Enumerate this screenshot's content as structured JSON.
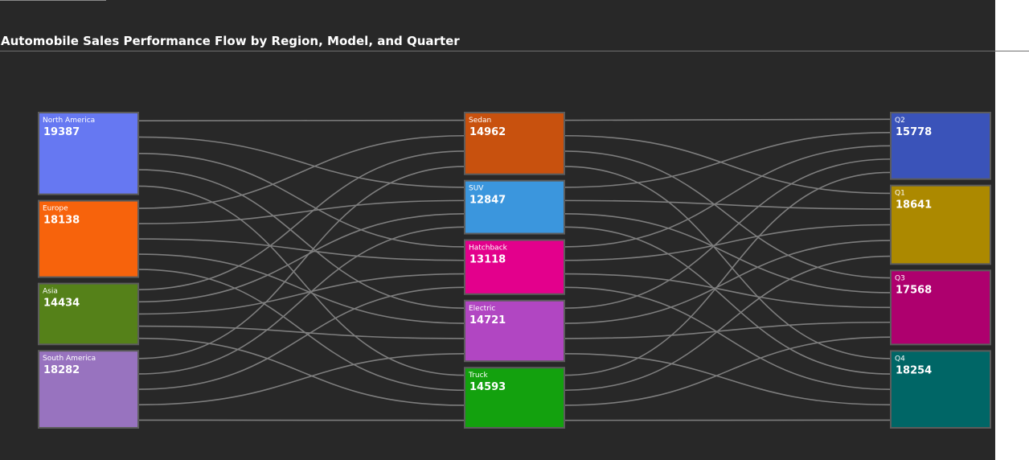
{
  "title": "Automobile Sales Performance Flow by Region, Model, and Quarter",
  "chart_data": {
    "type": "sankey",
    "title": "Automobile Sales Performance Flow by Region, Model, and Quarter",
    "columns": [
      {
        "stage": "Region",
        "nodes": [
          {
            "id": "north-america",
            "label": "North America",
            "value": 19387,
            "color": "#6678f2"
          },
          {
            "id": "europe",
            "label": "Europe",
            "value": 18138,
            "color": "#f7630c"
          },
          {
            "id": "asia",
            "label": "Asia",
            "value": 14434,
            "color": "#558119"
          },
          {
            "id": "south-america",
            "label": "South America",
            "value": 18282,
            "color": "#9873bf"
          }
        ]
      },
      {
        "stage": "Model",
        "nodes": [
          {
            "id": "sedan",
            "label": "Sedan",
            "value": 14962,
            "color": "#c8510e"
          },
          {
            "id": "suv",
            "label": "SUV",
            "value": 12847,
            "color": "#3b96dd"
          },
          {
            "id": "hatchback",
            "label": "Hatchback",
            "value": 13118,
            "color": "#e3008c"
          },
          {
            "id": "electric",
            "label": "Electric",
            "value": 14721,
            "color": "#b146c2"
          },
          {
            "id": "truck",
            "label": "Truck",
            "value": 14593,
            "color": "#13a10e"
          }
        ]
      },
      {
        "stage": "Quarter",
        "nodes": [
          {
            "id": "q2",
            "label": "Q2",
            "value": 15778,
            "color": "#3a53b9"
          },
          {
            "id": "q1",
            "label": "Q1",
            "value": 18641,
            "color": "#ac8900"
          },
          {
            "id": "q3",
            "label": "Q3",
            "value": 17568,
            "color": "#ae006e"
          },
          {
            "id": "q4",
            "label": "Q4",
            "value": 18254,
            "color": "#006666"
          }
        ]
      }
    ],
    "link_color": "#7d7d7d"
  }
}
